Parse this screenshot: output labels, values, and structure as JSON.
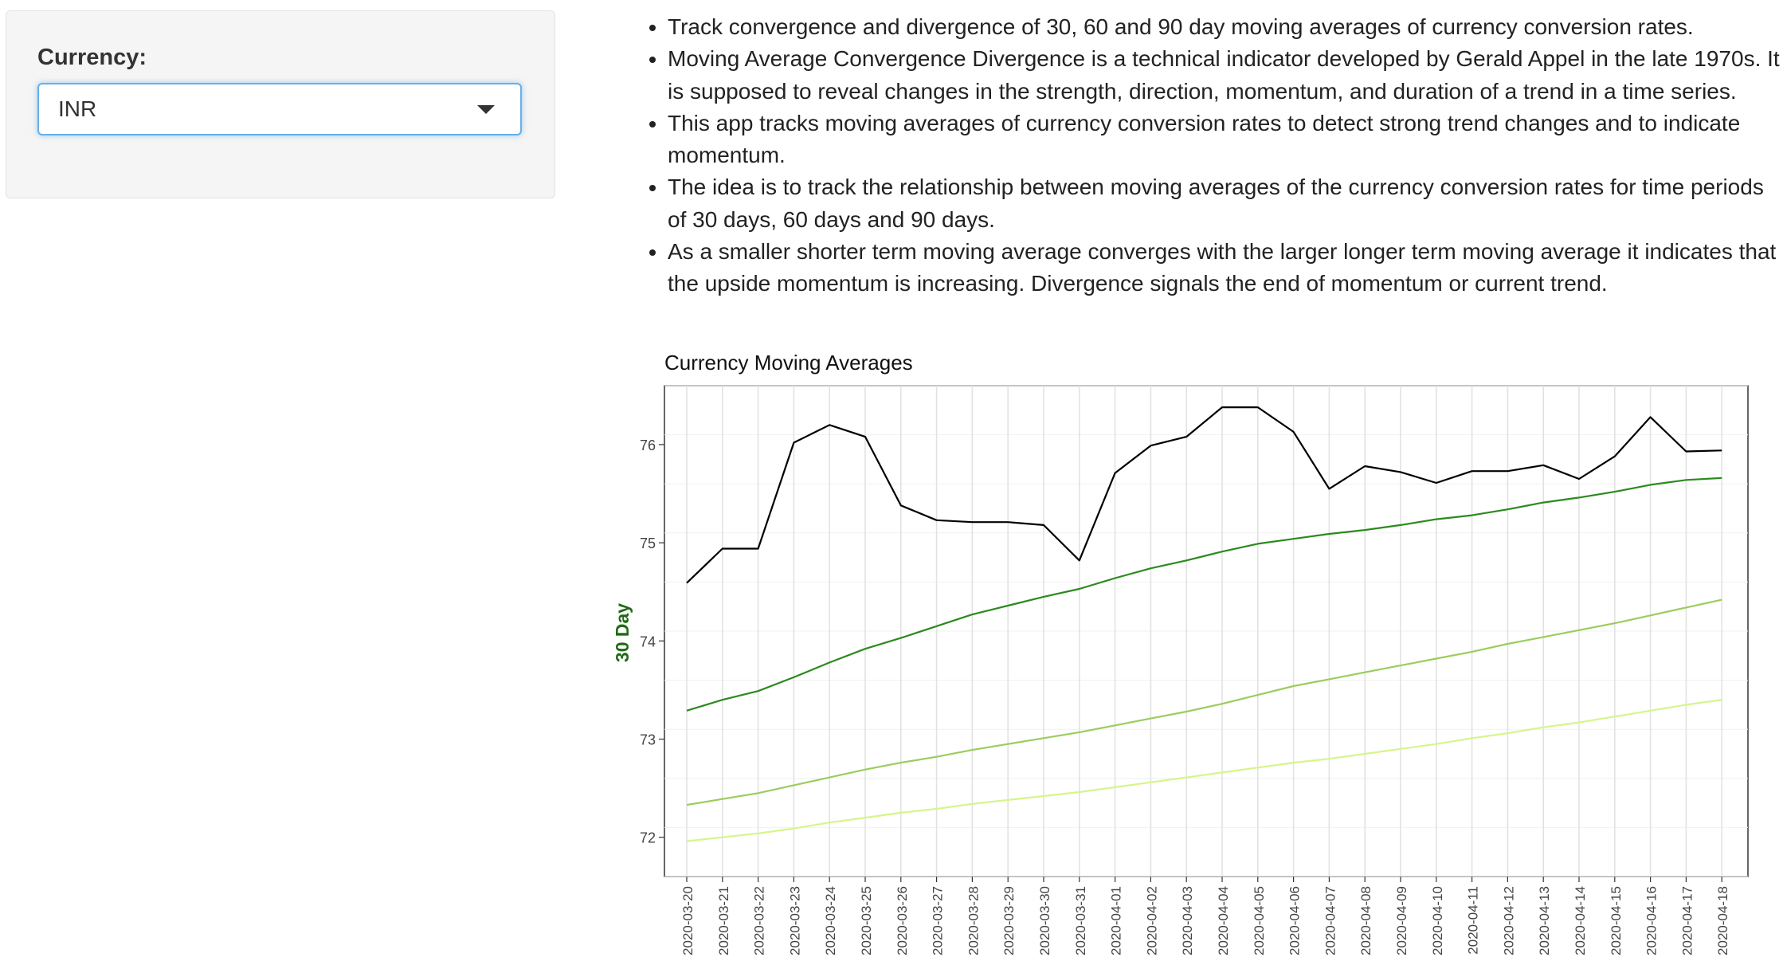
{
  "sidebar": {
    "label": "Currency:",
    "selected_value": "INR"
  },
  "description": [
    "Track convergence and divergence of 30, 60 and 90 day moving averages of currency conversion rates.",
    "Moving Average Convergence Divergence is a technical indicator developed by Gerald Appel in the late 1970s. It is supposed to reveal changes in the strength, direction, momentum, and duration of a trend in a time series.",
    "This app tracks moving averages of currency conversion rates to detect strong trend changes and to indicate momentum.",
    "The idea is to track the relationship between moving averages of the currency conversion rates for time periods of 30 days, 60 days and 90 days.",
    "As a smaller shorter term moving average converges with the larger longer term moving average it indicates that the upside momentum is increasing. Divergence signals the end of momentum or current trend."
  ],
  "colors": {
    "rate": "#000000",
    "ma30": "#2b8a1e",
    "ma60": "#9acd5c",
    "ma90": "#d6f58a",
    "ylabel": "#1f6b14",
    "accent": "#66afe9"
  },
  "chart_data": {
    "type": "line",
    "title": "Currency Moving Averages",
    "xlabel": "",
    "ylabel": "30 Day",
    "ylim": [
      71.6,
      76.6
    ],
    "yticks": [
      72,
      73,
      74,
      75,
      76
    ],
    "grid": true,
    "x": [
      "2020-03-20",
      "2020-03-21",
      "2020-03-22",
      "2020-03-23",
      "2020-03-24",
      "2020-03-25",
      "2020-03-26",
      "2020-03-27",
      "2020-03-28",
      "2020-03-29",
      "2020-03-30",
      "2020-03-31",
      "2020-04-01",
      "2020-04-02",
      "2020-04-03",
      "2020-04-04",
      "2020-04-05",
      "2020-04-06",
      "2020-04-07",
      "2020-04-08",
      "2020-04-09",
      "2020-04-10",
      "2020-04-11",
      "2020-04-12",
      "2020-04-13",
      "2020-04-14",
      "2020-04-15",
      "2020-04-16",
      "2020-04-17",
      "2020-04-18"
    ],
    "series": [
      {
        "values": [
          74.59,
          74.94,
          74.94,
          76.02,
          76.2,
          76.08,
          75.38,
          75.23,
          75.21,
          75.21,
          75.18,
          74.82,
          75.71,
          75.99,
          76.08,
          76.38,
          76.38,
          76.13,
          75.55,
          75.78,
          75.72,
          75.61,
          75.73,
          75.73,
          75.79,
          75.65,
          75.88,
          76.28,
          75.93,
          75.94
        ]
      },
      {
        "values": [
          73.29,
          73.4,
          73.49,
          73.63,
          73.78,
          73.92,
          74.03,
          74.15,
          74.27,
          74.36,
          74.45,
          74.53,
          74.64,
          74.74,
          74.82,
          74.91,
          74.99,
          75.04,
          75.09,
          75.13,
          75.18,
          75.24,
          75.28,
          75.34,
          75.41,
          75.46,
          75.52,
          75.59,
          75.64,
          75.66
        ]
      },
      {
        "values": [
          72.33,
          72.39,
          72.45,
          72.53,
          72.61,
          72.69,
          72.76,
          72.82,
          72.89,
          72.95,
          73.01,
          73.07,
          73.14,
          73.21,
          73.28,
          73.36,
          73.45,
          73.54,
          73.61,
          73.68,
          73.75,
          73.82,
          73.89,
          73.97,
          74.04,
          74.11,
          74.18,
          74.26,
          74.34,
          74.42
        ]
      },
      {
        "values": [
          71.96,
          72.0,
          72.04,
          72.09,
          72.15,
          72.2,
          72.25,
          72.29,
          72.34,
          72.38,
          72.42,
          72.46,
          72.51,
          72.56,
          72.61,
          72.66,
          72.71,
          72.76,
          72.8,
          72.85,
          72.9,
          72.95,
          73.01,
          73.06,
          73.12,
          73.17,
          73.23,
          73.29,
          73.35,
          73.4
        ]
      }
    ]
  }
}
